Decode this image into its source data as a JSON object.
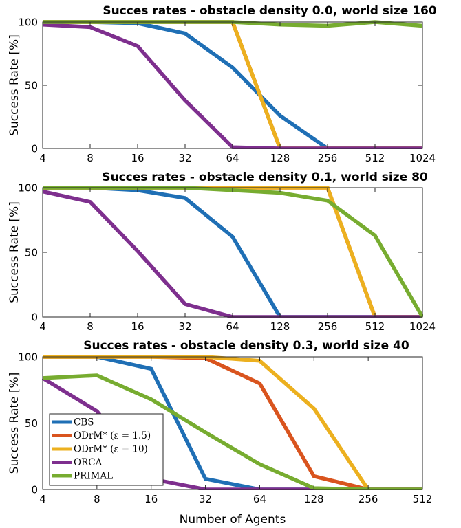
{
  "ylabel": "Success Rate [%]",
  "xlabel": "Number of Agents",
  "legend": {
    "position": "lower-left",
    "entries": [
      "CBS",
      "ODrM* (ε = 1.5)",
      "ODrM* (ε = 10)",
      "ORCA",
      "PRIMAL"
    ]
  },
  "colors": {
    "CBS": "#1f6fb5",
    "ODrM* (ε = 1.5)": "#d9541e",
    "ODrM* (ε = 10)": "#ecb01f",
    "ORCA": "#7e2f8e",
    "PRIMAL": "#77ac30"
  },
  "chart_data": [
    {
      "type": "line",
      "title": "Succes rates - obstacle density 0.0, world size 160",
      "x_scale": "log2",
      "xlim": [
        4,
        1024
      ],
      "ylim": [
        0,
        100
      ],
      "xticks": [
        4,
        8,
        16,
        32,
        64,
        128,
        256,
        512,
        1024
      ],
      "yticks": [
        0,
        50,
        100
      ],
      "series": [
        {
          "name": "CBS",
          "x": [
            4,
            8,
            16,
            32,
            64,
            128,
            256,
            512,
            1024
          ],
          "values": [
            100,
            100,
            99,
            91,
            64,
            26,
            0,
            0,
            0
          ]
        },
        {
          "name": "ODrM* (ε = 1.5)",
          "x": [
            4,
            8,
            16,
            32,
            64,
            128,
            256,
            512,
            1024
          ],
          "values": [
            100,
            100,
            100,
            100,
            100,
            0,
            0,
            0,
            0
          ]
        },
        {
          "name": "ODrM* (ε = 10)",
          "x": [
            4,
            8,
            16,
            32,
            64,
            128,
            256,
            512,
            1024
          ],
          "values": [
            100,
            100,
            100,
            100,
            100,
            0,
            0,
            0,
            0
          ]
        },
        {
          "name": "ORCA",
          "x": [
            4,
            8,
            16,
            32,
            64,
            128,
            256,
            512,
            1024
          ],
          "values": [
            98,
            96,
            81,
            38,
            1,
            0,
            0,
            0,
            0
          ]
        },
        {
          "name": "PRIMAL",
          "x": [
            4,
            8,
            16,
            32,
            64,
            128,
            256,
            512,
            1024
          ],
          "values": [
            100,
            100,
            100,
            100,
            100,
            98,
            97,
            100,
            97
          ]
        }
      ]
    },
    {
      "type": "line",
      "title": "Succes rates - obstacle density 0.1, world size 80",
      "x_scale": "log2",
      "xlim": [
        4,
        1024
      ],
      "ylim": [
        0,
        100
      ],
      "xticks": [
        4,
        8,
        16,
        32,
        64,
        128,
        256,
        512,
        1024
      ],
      "yticks": [
        0,
        50,
        100
      ],
      "series": [
        {
          "name": "CBS",
          "x": [
            4,
            8,
            16,
            32,
            64,
            128,
            256,
            512,
            1024
          ],
          "values": [
            100,
            100,
            98,
            92,
            62,
            0,
            0,
            0,
            0
          ]
        },
        {
          "name": "ODrM* (ε = 1.5)",
          "x": [
            4,
            8,
            16,
            32,
            64,
            128,
            256,
            512,
            1024
          ],
          "values": [
            100,
            100,
            100,
            100,
            100,
            100,
            100,
            0,
            0
          ]
        },
        {
          "name": "ODrM* (ε = 10)",
          "x": [
            4,
            8,
            16,
            32,
            64,
            128,
            256,
            512,
            1024
          ],
          "values": [
            100,
            100,
            100,
            100,
            100,
            100,
            100,
            0,
            0
          ]
        },
        {
          "name": "ORCA",
          "x": [
            4,
            8,
            16,
            32,
            64,
            128,
            256,
            512,
            1024
          ],
          "values": [
            97,
            89,
            51,
            10,
            0,
            0,
            0,
            0,
            0
          ]
        },
        {
          "name": "PRIMAL",
          "x": [
            4,
            8,
            16,
            32,
            64,
            128,
            256,
            512,
            1024
          ],
          "values": [
            100,
            100,
            100,
            100,
            98,
            96,
            90,
            63,
            0
          ]
        }
      ]
    },
    {
      "type": "line",
      "title": "Succes rates - obstacle density 0.3, world size 40",
      "x_scale": "log2",
      "xlim": [
        4,
        512
      ],
      "ylim": [
        0,
        100
      ],
      "xticks": [
        4,
        8,
        16,
        32,
        64,
        128,
        256,
        512
      ],
      "yticks": [
        0,
        50,
        100
      ],
      "series": [
        {
          "name": "CBS",
          "x": [
            4,
            8,
            16,
            32,
            64,
            128,
            256,
            512
          ],
          "values": [
            100,
            100,
            91,
            8,
            0,
            0,
            0,
            0
          ]
        },
        {
          "name": "ODrM* (ε = 1.5)",
          "x": [
            4,
            8,
            16,
            32,
            64,
            128,
            256,
            512
          ],
          "values": [
            100,
            100,
            100,
            99,
            80,
            10,
            0,
            0
          ]
        },
        {
          "name": "ODrM* (ε = 10)",
          "x": [
            4,
            8,
            16,
            32,
            64,
            128,
            256,
            512
          ],
          "values": [
            100,
            100,
            100,
            100,
            97,
            61,
            0,
            0
          ]
        },
        {
          "name": "ORCA",
          "x": [
            4,
            8,
            16,
            32,
            64,
            128,
            256,
            512
          ],
          "values": [
            84,
            59,
            8,
            0,
            0,
            0,
            0,
            0
          ]
        },
        {
          "name": "PRIMAL",
          "x": [
            4,
            8,
            16,
            32,
            64,
            128,
            256,
            512
          ],
          "values": [
            84,
            86,
            68,
            43,
            19,
            1,
            0,
            0
          ]
        }
      ]
    }
  ]
}
